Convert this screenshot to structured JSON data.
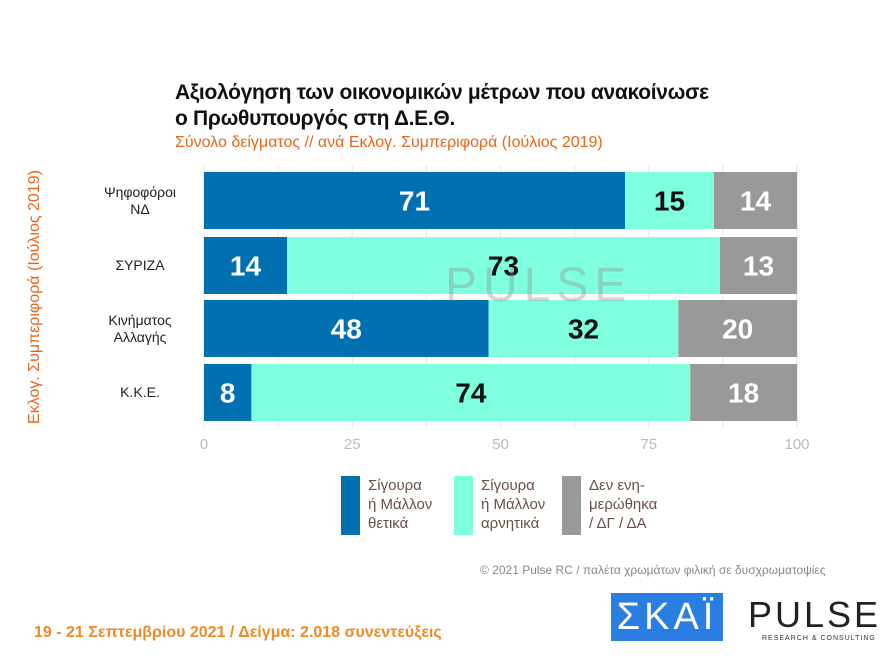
{
  "title_line1": "Αξιολόγηση των οικονομικών μέτρων που ανακοίνωσε",
  "title_line2": "ο Πρωθυπουργός στη Δ.Ε.Θ.",
  "subtitle": "Σύνολο δείγματος // ανά Εκλογ. Συμπεριφορά (Ιούλιος 2019)",
  "chart_data": {
    "type": "bar",
    "orientation": "horizontal",
    "stacked": true,
    "ylabel": "Εκλογ. Συμπεριφορά (Ιούλιος 2019)",
    "categories": [
      [
        "Ψηφοφόροι",
        "ΝΔ"
      ],
      [
        "ΣΥΡΙΖΑ"
      ],
      [
        "Κινήματος",
        "Αλλαγής"
      ],
      [
        "Κ.Κ.Ε."
      ]
    ],
    "series": [
      {
        "name": "Σίγουρα ή Μάλλον θετικά",
        "legend_lines": [
          "Σίγουρα",
          "ή Μάλλον",
          "θετικά"
        ],
        "color": "#0070b0",
        "label_color": "#ffffff",
        "values": [
          71,
          14,
          48,
          8
        ]
      },
      {
        "name": "Σίγουρα ή Μάλλον αρνητικά",
        "legend_lines": [
          "Σίγουρα",
          "ή Μάλλον",
          "αρνητικά"
        ],
        "color": "#80ffdf",
        "label_color": "#111111",
        "values": [
          15,
          73,
          32,
          74
        ]
      },
      {
        "name": "Δεν ενημερώθηκα / ΔΓ / ΔΑ",
        "legend_lines": [
          "Δεν ενη-",
          "μερώθηκα",
          "/ ΔΓ / ΔΑ"
        ],
        "color": "#999999",
        "label_color": "#ffffff",
        "values": [
          14,
          13,
          20,
          18
        ]
      }
    ],
    "xlim": [
      0,
      100
    ],
    "xticks": [
      "0",
      "25",
      "50",
      "75",
      "100"
    ],
    "grid": true,
    "legend_position": "bottom"
  },
  "watermark": "PULSE",
  "copyright": "© 2021 Pulse RC  /  παλέτα χρωμάτων φιλική σε δυσχρωματοψίες",
  "footer": "19 - 21 Σεπτεμβρίου 2021  /  Δείγμα:  2.018 συνεντεύξεις",
  "logos": {
    "skai": "ΣΚΑΪ",
    "pulse": "PULSE",
    "pulse_sub": "RESEARCH & CONSULTING"
  }
}
